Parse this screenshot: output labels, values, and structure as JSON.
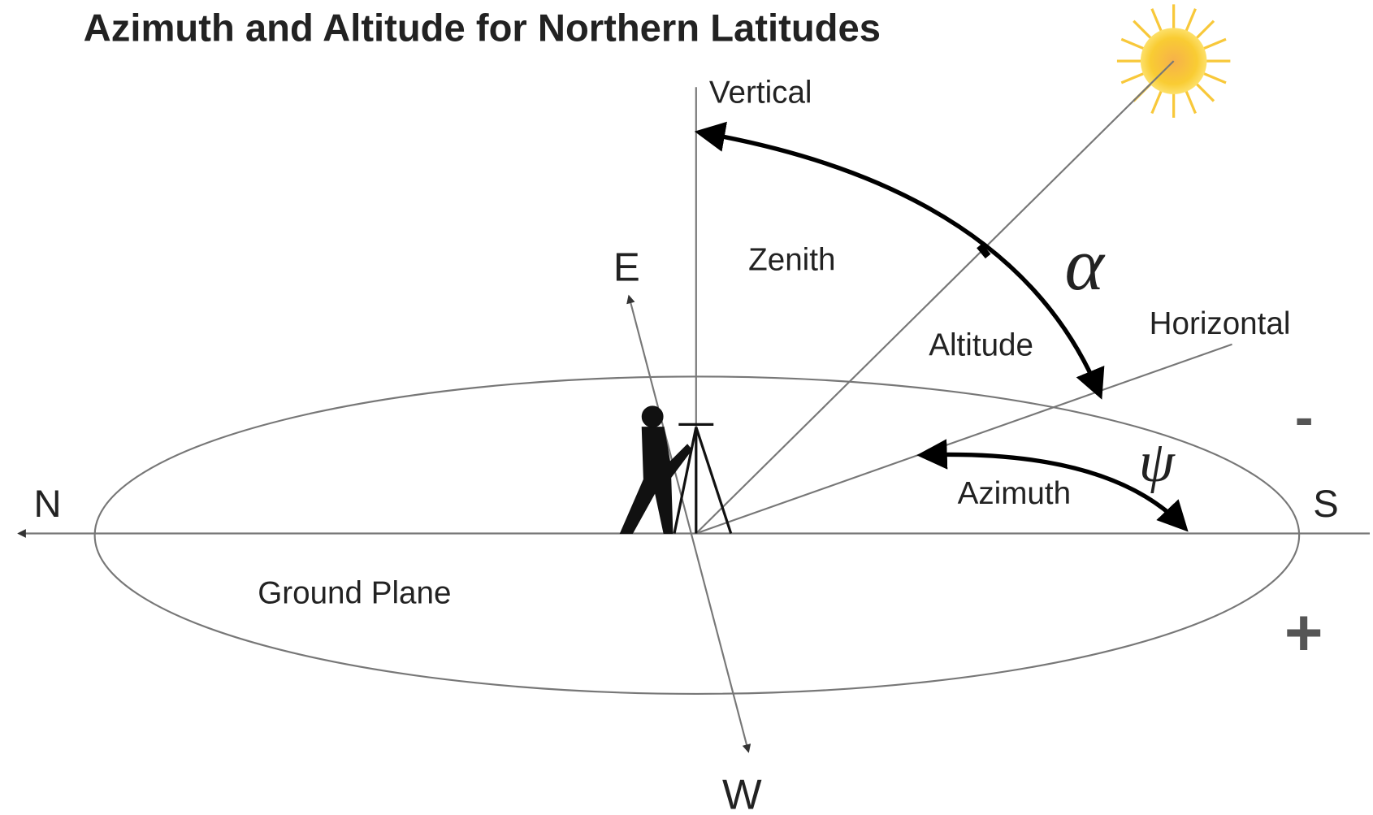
{
  "title": "Azimuth and Altitude for Northern Latitudes",
  "labels": {
    "vertical": "Vertical",
    "zenith": "Zenith",
    "east": "E",
    "altitude": "Altitude",
    "alpha": "α",
    "horizontal": "Horizontal",
    "minus": "-",
    "psi": "ψ",
    "north": "N",
    "south": "S",
    "azimuth": "Azimuth",
    "ground_plane": "Ground Plane",
    "plus": "+",
    "west": "W"
  }
}
